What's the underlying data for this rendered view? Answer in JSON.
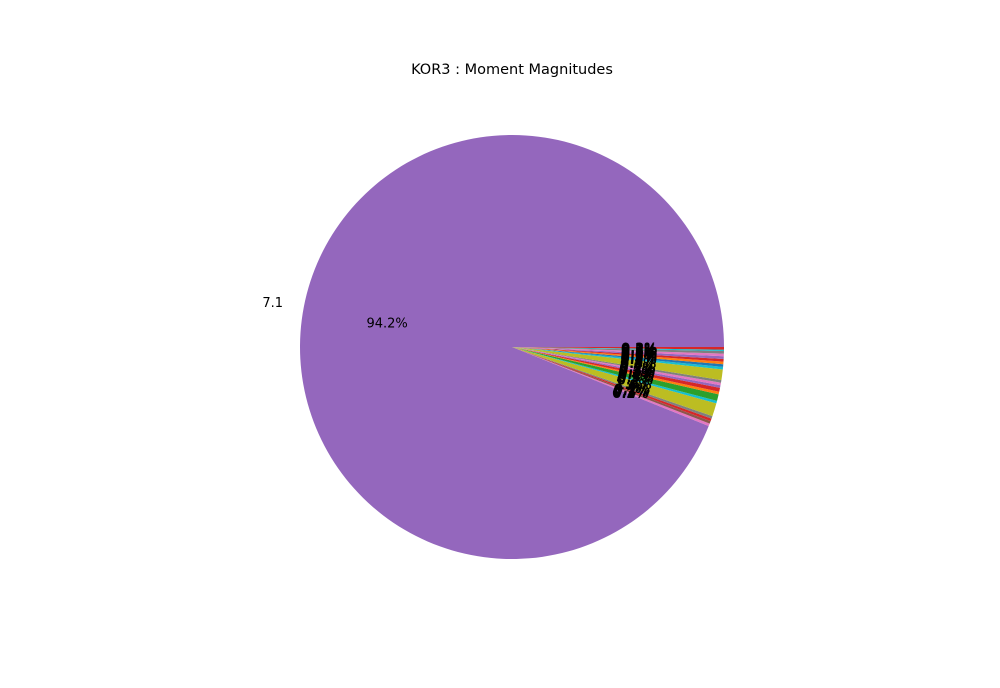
{
  "chart_data": {
    "type": "pie",
    "title": "KOR3 : Moment Magnitudes",
    "start_angle_deg": 0,
    "direction": "counterclockwise",
    "slices": [
      {
        "label": "7.1",
        "pct": 94.2,
        "pct_label": "94.2%",
        "color": "#9467bd"
      },
      {
        "label": "",
        "pct": 0.2,
        "pct_label": "0.2%",
        "color": "#e377c2"
      },
      {
        "label": "",
        "pct": 0.2,
        "pct_label": "0.2%",
        "color": "#8c564b"
      },
      {
        "label": "",
        "pct": 0.2,
        "pct_label": "0.2%",
        "color": "#d62728"
      },
      {
        "label": "",
        "pct": 0.2,
        "pct_label": "0.2%",
        "color": "#7f7f7f"
      },
      {
        "label": "",
        "pct": 1.0,
        "pct_label": "1.0%",
        "color": "#bcbd22"
      },
      {
        "label": "",
        "pct": 0.2,
        "pct_label": "0.2%",
        "color": "#17becf"
      },
      {
        "label": "",
        "pct": 0.5,
        "pct_label": "0.5%",
        "color": "#2ca02c"
      },
      {
        "label": "",
        "pct": 0.2,
        "pct_label": "0.2%",
        "color": "#ff7f0e"
      },
      {
        "label": "",
        "pct": 0.3,
        "pct_label": "0.3%",
        "color": "#d62728"
      },
      {
        "label": "",
        "pct": 0.2,
        "pct_label": "0.2%",
        "color": "#9467bd"
      },
      {
        "label": "",
        "pct": 0.2,
        "pct_label": "0.2%",
        "color": "#e377c2"
      },
      {
        "label": "",
        "pct": 0.2,
        "pct_label": "0.2%",
        "color": "#7f7f7f"
      },
      {
        "label": "",
        "pct": 0.8,
        "pct_label": "0.8%",
        "color": "#bcbd22"
      },
      {
        "label": "",
        "pct": 0.2,
        "pct_label": "0.2%",
        "color": "#17becf"
      },
      {
        "label": "",
        "pct": 0.2,
        "pct_label": "0.2%",
        "color": "#1f77b4"
      },
      {
        "label": "",
        "pct": 0.2,
        "pct_label": "0.2%",
        "color": "#ff7f0e"
      },
      {
        "label": "",
        "pct": 0.2,
        "pct_label": "0.2%",
        "color": "#d62728"
      },
      {
        "label": "",
        "pct": 0.2,
        "pct_label": "0.2%",
        "color": "#9467bd"
      },
      {
        "label": "",
        "pct": 0.2,
        "pct_label": "0.2%",
        "color": "#e377c2"
      },
      {
        "label": "",
        "pct": 0.2,
        "pct_label": "0.2%",
        "color": "#7f7f7f"
      },
      {
        "label": "",
        "pct": 0.1,
        "pct_label": "0.1%",
        "color": "#17becf"
      },
      {
        "label": "",
        "pct": 0.2,
        "pct_label": "0.2%",
        "color": "#d62728"
      }
    ]
  }
}
